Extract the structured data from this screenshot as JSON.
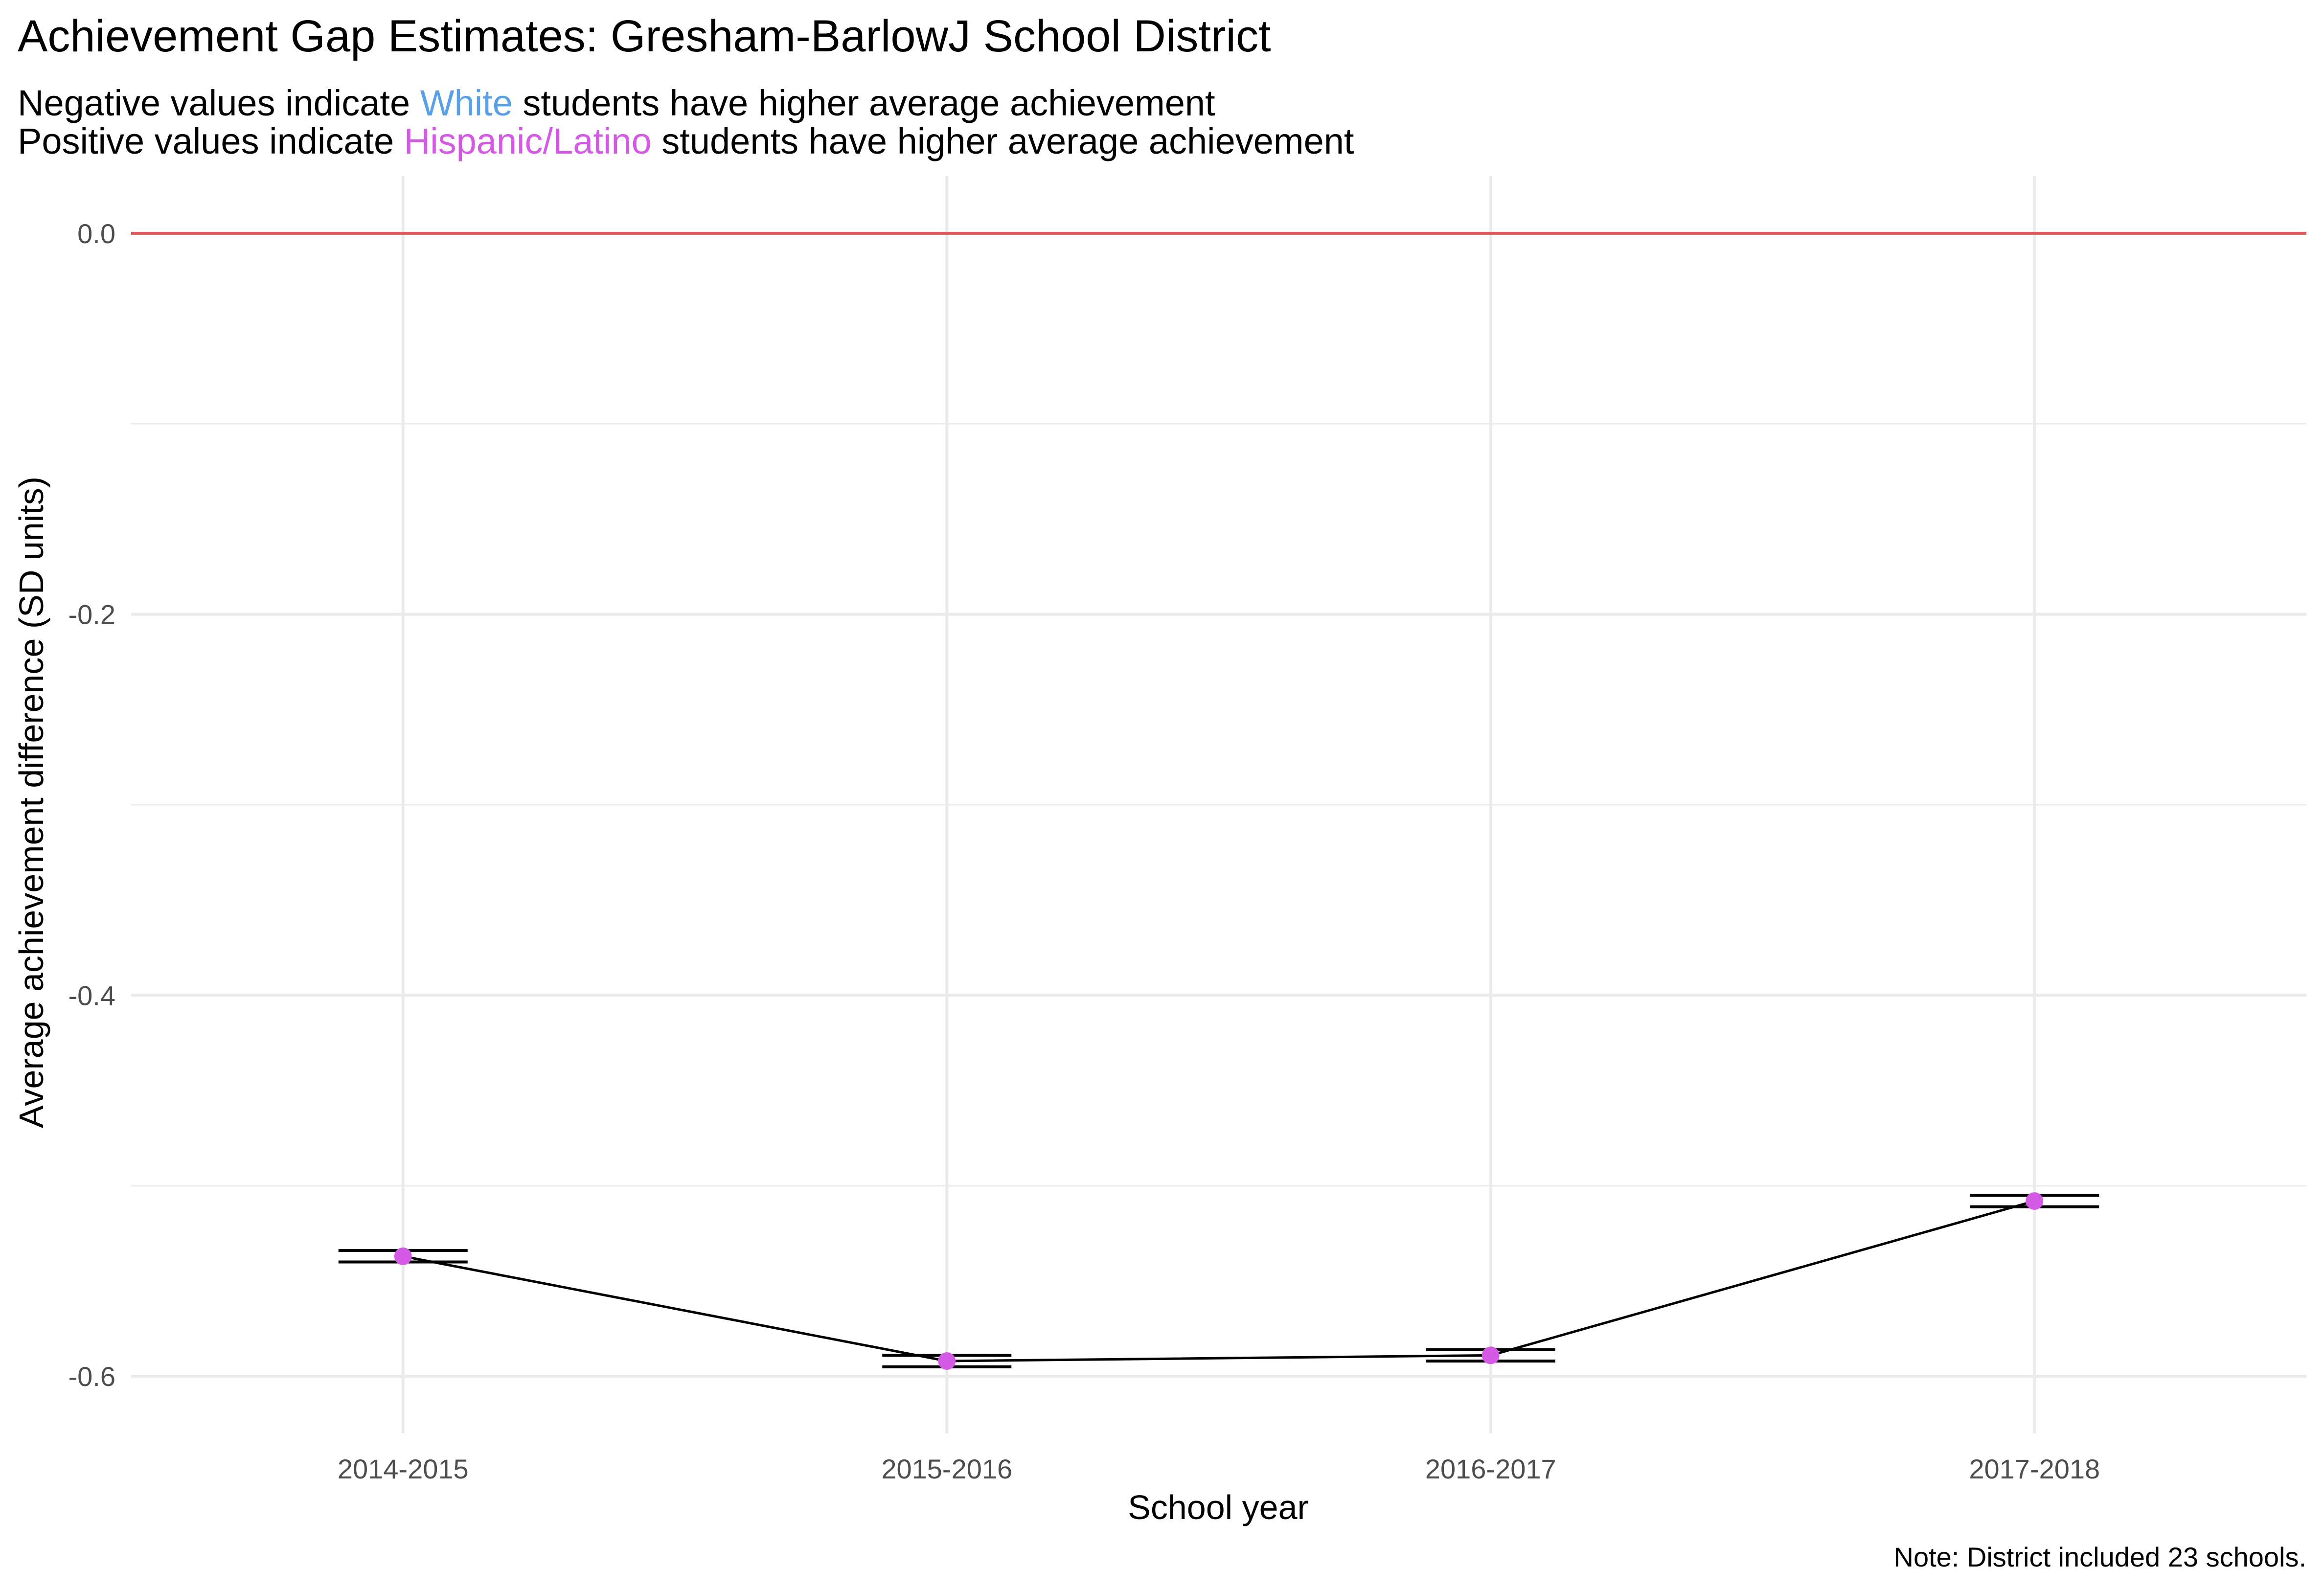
{
  "chart_data": {
    "type": "line",
    "title": "Achievement Gap Estimates: Gresham-BarlowJ School District",
    "subtitle": {
      "line1": {
        "before": "Negative values indicate ",
        "highlight": "White",
        "after": " students have higher average achievement"
      },
      "line2": {
        "before": "Positive values indicate ",
        "highlight": "Hispanic/Latino",
        "after": " students have higher average achievement"
      }
    },
    "xlabel": "School year",
    "ylabel": "Average achievement difference (SD units)",
    "caption": "Note: District included 23 schools.",
    "categories": [
      "2014-2015",
      "2015-2016",
      "2016-2017",
      "2017-2018"
    ],
    "series": [
      {
        "values": [
          -0.537,
          -0.592,
          -0.589,
          -0.508
        ],
        "error_low": [
          -0.54,
          -0.595,
          -0.592,
          -0.511
        ],
        "error_high": [
          -0.534,
          -0.589,
          -0.586,
          -0.505
        ]
      }
    ],
    "reference_line": 0.0,
    "ylim": [
      -0.63,
      0.03
    ],
    "yticks": [
      {
        "value": 0.0,
        "label": "0.0"
      },
      {
        "value": -0.2,
        "label": "-0.2"
      },
      {
        "value": -0.4,
        "label": "-0.4"
      },
      {
        "value": -0.6,
        "label": "-0.6"
      }
    ],
    "y_minor_ticks": [
      -0.1,
      -0.3,
      -0.5
    ],
    "grid": true,
    "colors": {
      "point": "#d45ae6",
      "line": "#000000",
      "reference": "#e05a5a",
      "grid": "#ebebeb",
      "white_highlight": "#5aa0e6",
      "hispanic_highlight": "#d45ae6"
    }
  }
}
